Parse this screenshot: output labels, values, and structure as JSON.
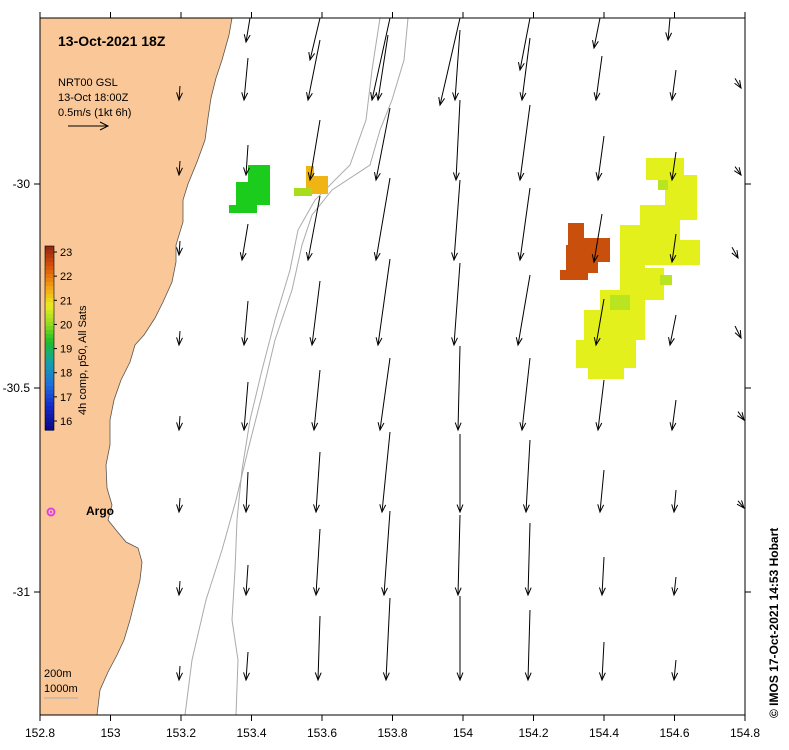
{
  "map": {
    "title": "13-Oct-2021 18Z",
    "info_lines": [
      "NRT00 GSL",
      "13-Oct 18:00Z",
      "0.5m/s (1kt 6h)"
    ],
    "x_ticks": [
      "152.8",
      "153",
      "153.2",
      "153.4",
      "153.6",
      "153.8",
      "154",
      "154.2",
      "154.4",
      "154.6",
      "154.8"
    ],
    "y_ticks": [
      "-30",
      "-30.5",
      "-31"
    ],
    "colorbar": {
      "label": "4h comp, p50, All Sats",
      "ticks": [
        "23",
        "22",
        "21",
        "20",
        "19",
        "18",
        "17",
        "16"
      ]
    },
    "argo_label": "Argo",
    "contours": [
      "200m",
      "1000m"
    ],
    "credit": "© IMOS 17-Oct-2021 14:53 Hobart",
    "colors": {
      "land": "#fac898",
      "argo": "#e040e0",
      "sst_green": "#1ccc1c",
      "sst_yellow": "#e4f01c",
      "sst_brown": "#c8500c",
      "sst_orange": "#f0b414"
    }
  }
}
